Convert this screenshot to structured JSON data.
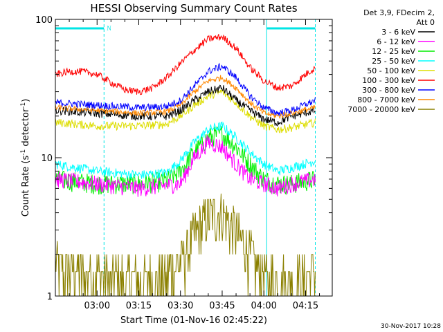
{
  "chart_data": {
    "type": "line",
    "title": "HESSI Observing Summary Count Rates",
    "xlabel": "Start Time (01-Nov-16 02:45:22)",
    "ylabel": "Count Rate (s",
    "ylabel_sup1": "-1",
    "ylabel_mid": " detector",
    "ylabel_sup2": "-1",
    "ylabel_end": ")",
    "y_scale": "log",
    "ylim": [
      1,
      100
    ],
    "xlim": [
      "02:45:22",
      "04:25:00"
    ],
    "x_tick_labels": [
      "03:00",
      "03:15",
      "03:30",
      "03:45",
      "04:00",
      "04:15"
    ],
    "x_tick_values_min": [
      15,
      30,
      45,
      60,
      75,
      90
    ],
    "y_tick_labels": [
      "1",
      "10",
      "100"
    ],
    "y_tick_values": [
      1,
      10,
      100
    ],
    "legend_header": [
      "Det 3,9, FDecim 2,",
      "Att 0"
    ],
    "legend_position": "right",
    "night_label": "N",
    "night_intervals_min": [
      [
        0,
        17.5
      ],
      [
        76,
        93.5
      ]
    ],
    "timestamp": "30-Nov-2017 10:28",
    "series": [
      {
        "name": "3 - 6 keV",
        "color": "#000000",
        "x_min": [
          0,
          15,
          30,
          40,
          45,
          50,
          55,
          60,
          65,
          70,
          75,
          80,
          85,
          93.5
        ],
        "y": [
          22,
          21,
          20,
          20,
          22,
          26,
          30,
          32,
          26,
          22,
          19,
          18,
          20,
          22
        ]
      },
      {
        "name": "6 - 12 keV",
        "color": "#ff00ff",
        "x_min": [
          0,
          15,
          30,
          45,
          50,
          55,
          60,
          65,
          70,
          75,
          80,
          85,
          93.5
        ],
        "y": [
          7,
          6.5,
          6,
          6.5,
          10,
          13,
          12,
          9,
          7,
          6.5,
          6,
          6.5,
          7
        ]
      },
      {
        "name": "12 - 25 keV",
        "color": "#00ee00",
        "x_min": [
          0,
          15,
          30,
          40,
          45,
          50,
          55,
          60,
          65,
          70,
          75,
          80,
          85,
          93.5
        ],
        "y": [
          7,
          6.5,
          6.5,
          6.8,
          8,
          11,
          14,
          15,
          12,
          9,
          7,
          6.5,
          6.5,
          7
        ]
      },
      {
        "name": "25 - 50 keV",
        "color": "#00ffff",
        "x_min": [
          0,
          15,
          30,
          40,
          45,
          50,
          55,
          60,
          65,
          70,
          75,
          80,
          85,
          93.5
        ],
        "y": [
          9,
          8,
          7.5,
          7.8,
          9.5,
          13,
          16,
          17,
          14,
          11,
          9,
          8,
          8.5,
          9.5
        ]
      },
      {
        "name": "50 - 100 keV",
        "color": "#dddd00",
        "x_min": [
          0,
          15,
          30,
          40,
          45,
          50,
          55,
          60,
          65,
          70,
          75,
          80,
          85,
          93.5
        ],
        "y": [
          18,
          17,
          17,
          17.5,
          20,
          24,
          28,
          30,
          25,
          20,
          17,
          16,
          16.5,
          18
        ]
      },
      {
        "name": "100 - 300 keV",
        "color": "#ff0000",
        "x_min": [
          0,
          5,
          10,
          15,
          20,
          25,
          30,
          35,
          40,
          45,
          50,
          55,
          60,
          65,
          70,
          75,
          80,
          85,
          90,
          93.5
        ],
        "y": [
          40,
          42,
          42,
          40,
          35,
          31,
          30,
          32,
          38,
          48,
          60,
          72,
          75,
          62,
          45,
          36,
          32,
          33,
          40,
          45
        ]
      },
      {
        "name": "300 - 800 keV",
        "color": "#0000ff",
        "x_min": [
          0,
          15,
          30,
          40,
          45,
          50,
          55,
          60,
          65,
          70,
          75,
          80,
          85,
          93.5
        ],
        "y": [
          25,
          24,
          23,
          23.5,
          26,
          33,
          42,
          46,
          38,
          28,
          23,
          21,
          22,
          26
        ]
      },
      {
        "name": "800 - 7000 keV",
        "color": "#ff8800",
        "x_min": [
          0,
          15,
          30,
          40,
          45,
          50,
          55,
          60,
          65,
          70,
          75,
          80,
          85,
          93.5
        ],
        "y": [
          23,
          22,
          21,
          21.5,
          24,
          30,
          36,
          38,
          32,
          25,
          21,
          20,
          21,
          23
        ]
      },
      {
        "name": "7000 - 20000 keV",
        "color": "#8b8000",
        "x_min": [
          0,
          15,
          30,
          40,
          45,
          50,
          55,
          60,
          65,
          70,
          75,
          80,
          85,
          93.5
        ],
        "y": [
          1.6,
          1.4,
          1.3,
          1.4,
          1.8,
          2.8,
          3.8,
          3.9,
          3.0,
          2.0,
          1.4,
          1.3,
          1.3,
          1.5
        ]
      }
    ]
  }
}
